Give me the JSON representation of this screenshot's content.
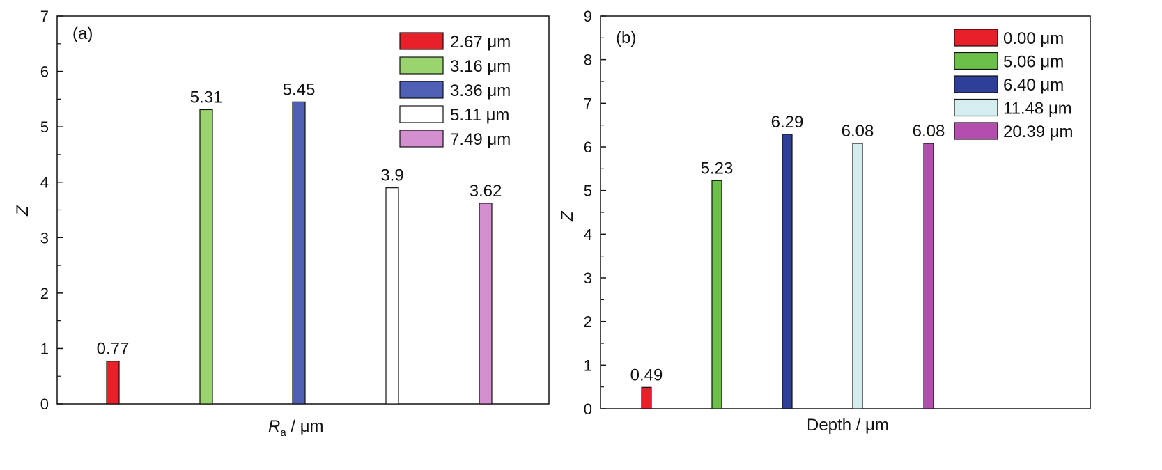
{
  "chart_data": [
    {
      "type": "bar",
      "panel_label": "(a)",
      "ylabel": "Z",
      "xlabel_main": "R",
      "xlabel_sub": "a",
      "xlabel_rest": " / μm",
      "ylim": [
        0,
        7
      ],
      "yticks": [
        "0",
        "1",
        "2",
        "3",
        "4",
        "5",
        "6",
        "7"
      ],
      "legend_position": "top-right",
      "series": [
        {
          "name": "2.67 μm",
          "value": 0.77,
          "label": "0.77",
          "color": "#e8202a"
        },
        {
          "name": "3.16 μm",
          "value": 5.31,
          "label": "5.31",
          "color": "#9ad46e"
        },
        {
          "name": "3.36 μm",
          "value": 5.45,
          "label": "5.45",
          "color": "#4f5fb5"
        },
        {
          "name": "5.11 μm",
          "value": 3.9,
          "label": "3.9",
          "color": "#ffffff"
        },
        {
          "name": "7.49 μm",
          "value": 3.62,
          "label": "3.62",
          "color": "#d38fcf"
        }
      ]
    },
    {
      "type": "bar",
      "panel_label": "(b)",
      "ylabel": "Z",
      "xlabel": "Depth / μm",
      "ylim": [
        0,
        9
      ],
      "yticks": [
        "0",
        "1",
        "2",
        "3",
        "4",
        "5",
        "6",
        "7",
        "8",
        "9"
      ],
      "legend_position": "top-right",
      "series": [
        {
          "name": "0.00 μm",
          "value": 0.49,
          "label": "0.49",
          "color": "#e8202a"
        },
        {
          "name": "5.06 μm",
          "value": 5.23,
          "label": "5.23",
          "color": "#6cc04a"
        },
        {
          "name": "6.40 μm",
          "value": 6.29,
          "label": "6.29",
          "color": "#2e3f9a"
        },
        {
          "name": "11.48 μm",
          "value": 6.08,
          "label": "6.08",
          "color": "#d4eef0"
        },
        {
          "name": "20.39 μm",
          "value": 6.08,
          "label": "6.08",
          "color": "#b24fae"
        }
      ]
    }
  ]
}
